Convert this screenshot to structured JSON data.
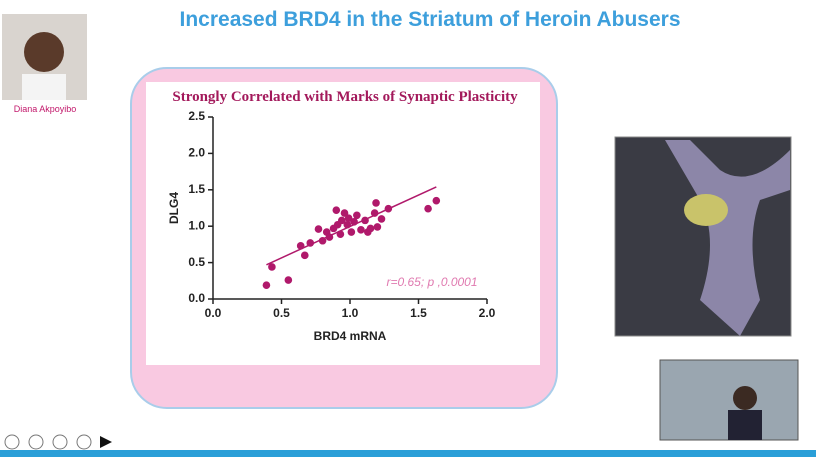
{
  "slide": {
    "title": "Increased BRD4 in the Striatum of Heroin Abusers",
    "presenter": "Diana Akpoyibo"
  },
  "chart_data": {
    "type": "scatter",
    "title": "Strongly Correlated with Marks of Synaptic Plasticity",
    "x_label": "BRD4 mRNA",
    "y_label": "DLG4",
    "annotation": "r=0.65; p ,0.0001",
    "color": "#b0196b",
    "x": [
      0.39,
      0.43,
      0.55,
      0.64,
      0.67,
      0.71,
      0.77,
      0.8,
      0.83,
      0.85,
      0.88,
      0.9,
      0.91,
      0.93,
      0.94,
      0.96,
      0.98,
      0.99,
      1.01,
      1.03,
      1.05,
      1.08,
      1.11,
      1.13,
      1.15,
      1.18,
      1.19,
      1.2,
      1.23,
      1.28,
      1.57,
      1.63
    ],
    "values": [
      0.19,
      0.44,
      0.26,
      0.73,
      0.6,
      0.77,
      0.96,
      0.8,
      0.92,
      0.85,
      0.97,
      1.22,
      1.02,
      0.89,
      1.08,
      1.18,
      1.02,
      1.11,
      0.92,
      1.06,
      1.15,
      0.95,
      1.08,
      0.92,
      0.97,
      1.18,
      1.32,
      0.99,
      1.1,
      1.24,
      1.24,
      1.35
    ],
    "trend_line": {
      "x": [
        0.39,
        1.63
      ],
      "y": [
        0.47,
        1.54
      ]
    },
    "xlim": [
      0,
      2
    ],
    "ylim": [
      0,
      2.5
    ],
    "xticks": [
      {
        "value": 0,
        "label": "0.0"
      },
      {
        "value": 0.5,
        "label": "0.5"
      },
      {
        "value": 1,
        "label": "1.0"
      },
      {
        "value": 1.5,
        "label": "1.5"
      },
      {
        "value": 2,
        "label": "2.0"
      }
    ],
    "yticks": [
      {
        "value": 0,
        "label": "0.0"
      },
      {
        "value": 0.5,
        "label": "0.5"
      },
      {
        "value": 1,
        "label": "1.0"
      },
      {
        "value": 1.5,
        "label": "1.5"
      },
      {
        "value": 2,
        "label": "2.0"
      },
      {
        "value": 2.5,
        "label": "2.5"
      }
    ]
  }
}
